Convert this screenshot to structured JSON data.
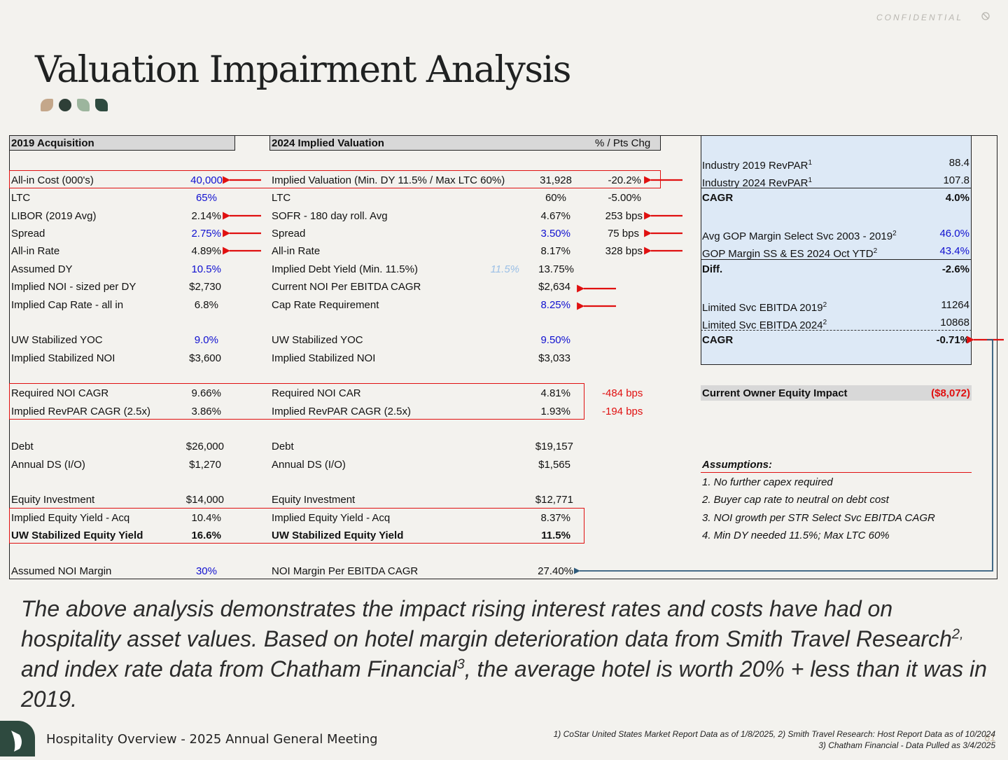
{
  "header": {
    "confidential": "CONFIDENTIAL",
    "title": "Valuation Impairment Analysis"
  },
  "left": {
    "header": "2019 Acquisition",
    "rows": [
      {
        "label": "All-in Cost (000's)",
        "value": "40,000"
      },
      {
        "label": "LTC",
        "value": "65%"
      },
      {
        "label": "LIBOR (2019 Avg)",
        "value": "2.14%"
      },
      {
        "label": "Spread",
        "value": "2.75%"
      },
      {
        "label": "All-in Rate",
        "value": "4.89%"
      },
      {
        "label": "Assumed DY",
        "value": "10.5%"
      },
      {
        "label": "Implied NOI - sized per DY",
        "value": "$2,730"
      },
      {
        "label": "Implied Cap Rate - all in",
        "value": "6.8%"
      },
      {
        "label": "UW Stabilized YOC",
        "value": "9.0%"
      },
      {
        "label": "Implied Stabilized NOI",
        "value": "$3,600"
      },
      {
        "label": "Required NOI CAGR",
        "value": "9.66%"
      },
      {
        "label": "Implied RevPAR CAGR (2.5x)",
        "value": "3.86%"
      },
      {
        "label": "Debt",
        "value": "$26,000"
      },
      {
        "label": "Annual DS (I/O)",
        "value": "$1,270"
      },
      {
        "label": "Equity Investment",
        "value": "$14,000"
      },
      {
        "label": "Implied Equity Yield - Acq",
        "value": "10.4%"
      },
      {
        "label": "UW Stabilized Equity Yield",
        "value": "16.6%"
      },
      {
        "label": "Assumed NOI Margin",
        "value": "30%"
      }
    ]
  },
  "middle": {
    "header": "2024 Implied Valuation",
    "chg_header": "% / Pts Chg",
    "rows": [
      {
        "label": "Implied Valuation (Min. DY 11.5% / Max LTC 60%)",
        "value": "31,928",
        "chg": "-20.2%"
      },
      {
        "label": "LTC",
        "value": "60%",
        "chg": "-5.00%"
      },
      {
        "label": "SOFR - 180 day roll. Avg",
        "value": "4.67%",
        "chg": "253 bps"
      },
      {
        "label": "Spread",
        "value": "3.50%",
        "chg": "75 bps"
      },
      {
        "label": "All-in Rate",
        "value": "8.17%",
        "chg": "328 bps"
      },
      {
        "label": "Implied Debt Yield (Min. 11.5%)",
        "value": "13.75%",
        "note": "11.5%"
      },
      {
        "label": "Current NOI Per EBITDA CAGR",
        "value": "$2,634"
      },
      {
        "label": "Cap Rate Requirement",
        "value": "8.25%"
      },
      {
        "label": "UW Stabilized YOC",
        "value": "9.50%"
      },
      {
        "label": "Implied Stabilized NOI",
        "value": "$3,033"
      },
      {
        "label": "Required NOI CAR",
        "value": "4.81%",
        "chg": "-484 bps"
      },
      {
        "label": "Implied RevPAR CAGR (2.5x)",
        "value": "1.93%",
        "chg": "-194 bps"
      },
      {
        "label": "Debt",
        "value": "$19,157"
      },
      {
        "label": "Annual DS (I/O)",
        "value": "$1,565"
      },
      {
        "label": "Equity Investment",
        "value": "$12,771"
      },
      {
        "label": "Implied Equity Yield - Acq",
        "value": "8.37%"
      },
      {
        "label": "UW Stabilized Equity Yield",
        "value": "11.5%"
      },
      {
        "label": "NOI Margin Per EBITDA CAGR",
        "value": "27.40%"
      }
    ]
  },
  "right": {
    "rows": [
      {
        "label": "Industry 2019 RevPAR",
        "sup": "1",
        "value": "88.4"
      },
      {
        "label": "Industry 2024 RevPAR",
        "sup": "1",
        "value": "107.8"
      },
      {
        "label": "CAGR",
        "value": "4.0%"
      },
      {
        "label": "Avg GOP Margin Select Svc 2003 - 2019",
        "sup": "2",
        "value": "46.0%"
      },
      {
        "label": "GOP Margin SS & ES 2024 Oct YTD",
        "sup": "2",
        "value": "43.4%"
      },
      {
        "label": "Diff.",
        "value": "-2.6%"
      },
      {
        "label": "Limited Svc EBITDA 2019",
        "sup": "2",
        "value": "11264"
      },
      {
        "label": "Limited Svc EBITDA 2024",
        "sup": "2",
        "value": "10868"
      },
      {
        "label": "CAGR",
        "value": "-0.71%"
      }
    ],
    "impact_label": "Current Owner Equity Impact",
    "impact_value": "($8,072)",
    "assumptions_title": "Assumptions:",
    "assumptions": [
      "1. No further capex required",
      "2. Buyer cap rate to neutral on debt cost",
      "3. NOI growth per STR Select Svc EBITDA CAGR",
      "4. Min DY needed 11.5%; Max LTC 60%"
    ]
  },
  "summary": {
    "part1": "The above analysis demonstrates the impact rising interest rates and costs have had on hospitality asset values. Based on hotel margin deterioration data from Smith Travel Research",
    "sup1": "2,",
    "part2": " and index rate data from Chatham Financial",
    "sup2": "3",
    "part3": ", the average hotel is worth 20% + less than it was in 2019."
  },
  "footer": {
    "title": "Hospitality Overview - 2025 Annual General Meeting",
    "source1": "1) CoStar United States Market Report Data as of 1/8/2025, 2) Smith Travel Research: Host Report Data as of 10/2024",
    "source2": "3) Chatham Financial - Data Pulled as 3/4/2025",
    "page": "61"
  },
  "colors": {
    "accent_red": "#e01010",
    "input_blue": "#1010d0",
    "panel_blue": "#dde9f6",
    "brand_green": "#2e4a3f"
  }
}
